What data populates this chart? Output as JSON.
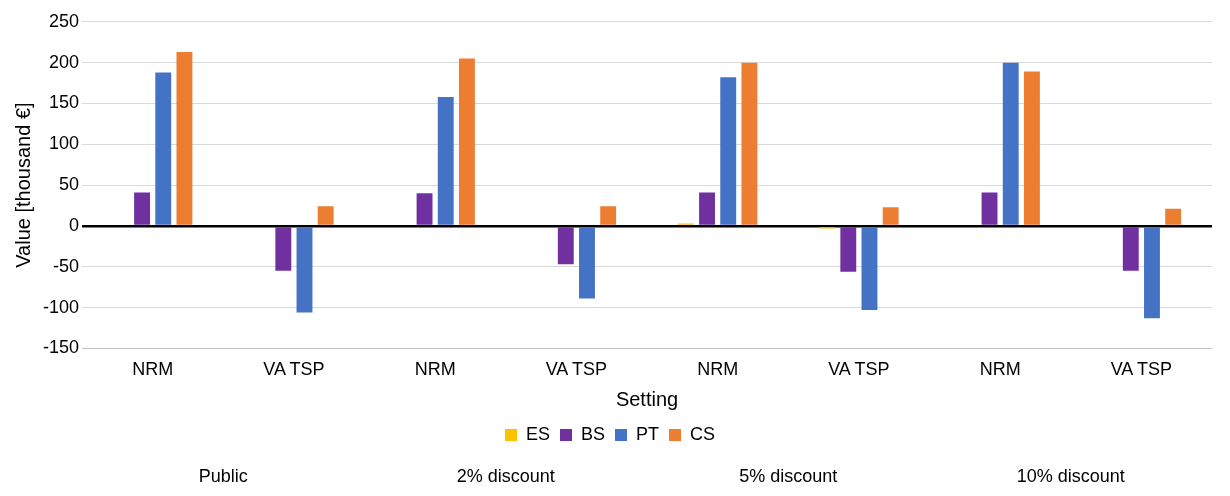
{
  "chart_data": {
    "type": "bar",
    "xlabel": "Setting",
    "ylabel": "Value [thousand €]",
    "categories": [
      "NRM",
      "VA TSP",
      "NRM",
      "VA TSP",
      "NRM",
      "VA TSP",
      "NRM",
      "VA TSP"
    ],
    "series": [
      {
        "name": "ES",
        "color": "#ffc000",
        "values": [
          0,
          0,
          0,
          0,
          3,
          -3,
          0,
          0
        ]
      },
      {
        "name": "BS",
        "color": "#7030a0",
        "values": [
          41,
          -55,
          40,
          -47,
          41,
          -56,
          41,
          -55
        ]
      },
      {
        "name": "PT",
        "color": "#4472c4",
        "values": [
          188,
          -106,
          158,
          -89,
          182,
          -103,
          200,
          -113
        ]
      },
      {
        "name": "CS",
        "color": "#ed7d31",
        "values": [
          213,
          24,
          205,
          24,
          200,
          23,
          189,
          21
        ]
      }
    ],
    "ylim": [
      -150,
      250
    ],
    "yticks": [
      -150,
      -100,
      -50,
      0,
      50,
      100,
      150,
      200,
      250
    ],
    "grid": "y",
    "legend": "bottom",
    "annotations": [
      "Public",
      "2% discount",
      "5% discount",
      "10% discount"
    ]
  }
}
